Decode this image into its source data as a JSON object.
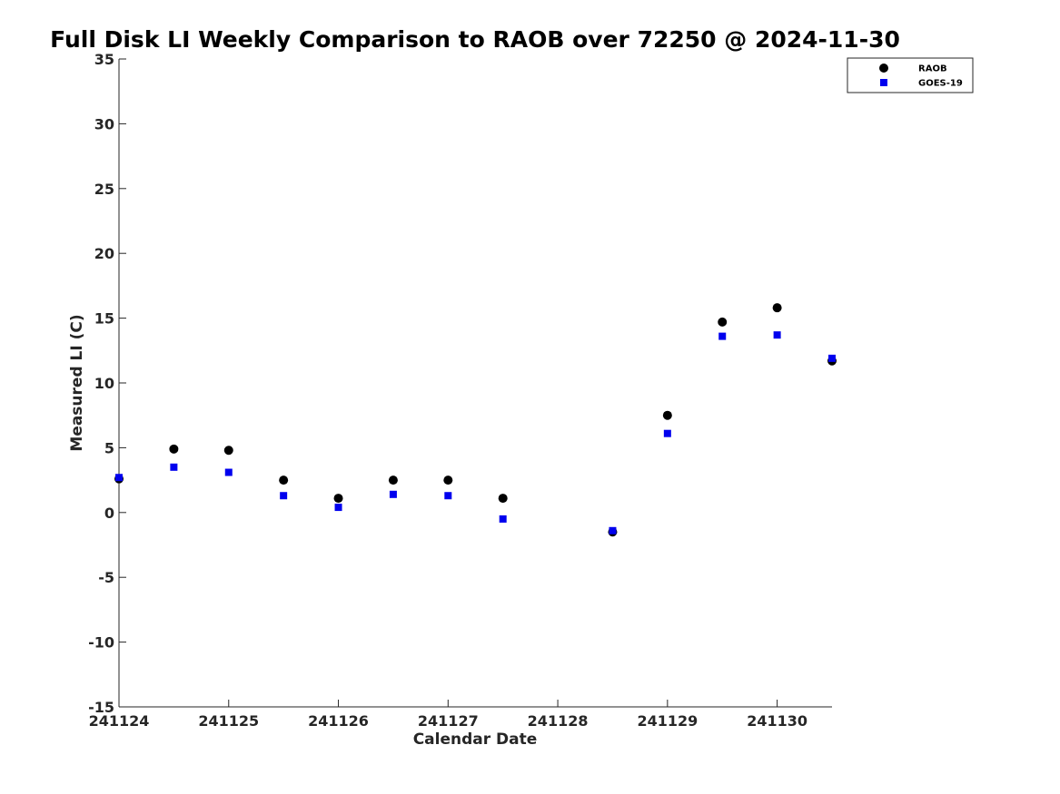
{
  "chart_data": {
    "type": "scatter",
    "title": "Full Disk LI Weekly Comparison to RAOB over 72250 @ 2024-11-30",
    "xlabel": "Calendar Date",
    "ylabel": "Measured LI (C)",
    "ylim": [
      -15,
      35
    ],
    "yticks": [
      -15,
      -10,
      -5,
      0,
      5,
      10,
      15,
      20,
      25,
      30,
      35
    ],
    "xlim": [
      "2024-11-24T00:00",
      "2024-11-30T12:00"
    ],
    "xticks": [
      "2024-11-24",
      "2024-11-25",
      "2024-11-26",
      "2024-11-27",
      "2024-11-28",
      "2024-11-29",
      "2024-11-30"
    ],
    "xtick_labels": [
      "241124",
      "241125",
      "241126",
      "241127",
      "241128",
      "241129",
      "241130"
    ],
    "grid": false,
    "legend_position": "top-right",
    "series": [
      {
        "name": "RAOB",
        "marker": "circle",
        "color": "#000000",
        "points": [
          {
            "x": "2024-11-24T00:00",
            "y": 2.6
          },
          {
            "x": "2024-11-24T12:00",
            "y": 4.9
          },
          {
            "x": "2024-11-25T00:00",
            "y": 4.8
          },
          {
            "x": "2024-11-25T12:00",
            "y": 2.5
          },
          {
            "x": "2024-11-26T00:00",
            "y": 1.1
          },
          {
            "x": "2024-11-26T12:00",
            "y": 2.5
          },
          {
            "x": "2024-11-27T00:00",
            "y": 2.5
          },
          {
            "x": "2024-11-27T12:00",
            "y": 1.1
          },
          {
            "x": "2024-11-28T12:00",
            "y": -1.5
          },
          {
            "x": "2024-11-29T00:00",
            "y": 7.5
          },
          {
            "x": "2024-11-29T12:00",
            "y": 14.7
          },
          {
            "x": "2024-11-30T00:00",
            "y": 15.8
          },
          {
            "x": "2024-11-30T12:00",
            "y": 11.7
          }
        ]
      },
      {
        "name": "GOES-19",
        "marker": "square",
        "color": "#0000ee",
        "points": [
          {
            "x": "2024-11-24T00:00",
            "y": 2.7
          },
          {
            "x": "2024-11-24T12:00",
            "y": 3.5
          },
          {
            "x": "2024-11-25T00:00",
            "y": 3.1
          },
          {
            "x": "2024-11-25T12:00",
            "y": 1.3
          },
          {
            "x": "2024-11-26T00:00",
            "y": 0.4
          },
          {
            "x": "2024-11-26T12:00",
            "y": 1.4
          },
          {
            "x": "2024-11-27T00:00",
            "y": 1.3
          },
          {
            "x": "2024-11-27T12:00",
            "y": -0.5
          },
          {
            "x": "2024-11-28T12:00",
            "y": -1.4
          },
          {
            "x": "2024-11-29T00:00",
            "y": 6.1
          },
          {
            "x": "2024-11-29T12:00",
            "y": 13.6
          },
          {
            "x": "2024-11-30T00:00",
            "y": 13.7
          },
          {
            "x": "2024-11-30T12:00",
            "y": 11.9
          }
        ]
      }
    ]
  }
}
